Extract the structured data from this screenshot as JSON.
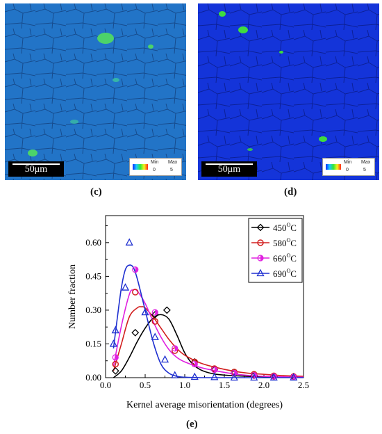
{
  "panels": {
    "c": {
      "label": "(c)",
      "scale_bar": "50μm",
      "color_key": {
        "min_label": "Min",
        "max_label": "Max",
        "min_value": "0",
        "max_value": "5"
      },
      "background_color": "#1f6bc4"
    },
    "d": {
      "label": "(d)",
      "scale_bar": "50μm",
      "color_key": {
        "min_label": "Min",
        "max_label": "Max",
        "min_value": "0",
        "max_value": "5"
      },
      "background_color": "#1028d6"
    },
    "e": {
      "label": "(e)"
    }
  },
  "chart_data": {
    "type": "line",
    "xlabel": "Kernel average misorientation (degrees)",
    "ylabel": "Number fraction",
    "xlim": [
      0.0,
      2.5
    ],
    "ylim": [
      0.0,
      0.72
    ],
    "xticks": [
      "0.0",
      "0.5",
      "1.0",
      "1.5",
      "2.0",
      "2.5"
    ],
    "yticks": [
      "0.00",
      "0.15",
      "0.30",
      "0.45",
      "0.60"
    ],
    "legend_position": "top-right",
    "series": [
      {
        "name": "450°C",
        "name_base": "450",
        "name_sup": "O",
        "name_unit": "C",
        "color": "#000000",
        "marker": "diamond",
        "points": {
          "x": [
            0.125,
            0.375,
            0.625,
            0.775,
            1.125,
            1.375,
            1.625,
            1.875,
            2.125,
            2.375
          ],
          "y": [
            0.03,
            0.2,
            0.28,
            0.3,
            0.07,
            0.035,
            0.02,
            0.01,
            0.005,
            0.005
          ]
        },
        "curve": {
          "x": [
            0.1,
            0.2,
            0.3,
            0.4,
            0.5,
            0.6,
            0.7,
            0.8,
            0.9,
            1.0,
            1.1,
            1.2,
            1.3,
            1.4,
            1.6,
            1.8,
            2.0,
            2.2,
            2.5
          ],
          "y": [
            0.0,
            0.03,
            0.09,
            0.16,
            0.22,
            0.265,
            0.28,
            0.26,
            0.19,
            0.11,
            0.06,
            0.035,
            0.022,
            0.015,
            0.009,
            0.006,
            0.004,
            0.003,
            0.002
          ]
        }
      },
      {
        "name": "580°C",
        "name_base": "580",
        "name_sup": "O",
        "name_unit": "C",
        "color": "#d21f1f",
        "marker": "circle",
        "points": {
          "x": [
            0.125,
            0.375,
            0.625,
            0.875,
            1.125,
            1.375,
            1.625,
            1.875,
            2.125,
            2.375
          ],
          "y": [
            0.06,
            0.38,
            0.25,
            0.12,
            0.07,
            0.04,
            0.025,
            0.015,
            0.008,
            0.005
          ]
        },
        "curve": {
          "x": [
            0.1,
            0.2,
            0.3,
            0.4,
            0.45,
            0.5,
            0.6,
            0.7,
            0.8,
            0.9,
            1.0,
            1.2,
            1.4,
            1.6,
            1.8,
            2.0,
            2.2,
            2.5
          ],
          "y": [
            0.03,
            0.15,
            0.27,
            0.31,
            0.315,
            0.31,
            0.27,
            0.22,
            0.17,
            0.13,
            0.1,
            0.065,
            0.045,
            0.03,
            0.02,
            0.015,
            0.01,
            0.006
          ]
        }
      },
      {
        "name": "660°C",
        "name_base": "660",
        "name_sup": "O",
        "name_unit": "C",
        "color": "#e020e0",
        "marker": "half-circle",
        "points": {
          "x": [
            0.125,
            0.375,
            0.625,
            0.875,
            1.125,
            1.375,
            1.625,
            1.875,
            2.125,
            2.375
          ],
          "y": [
            0.09,
            0.48,
            0.29,
            0.13,
            0.06,
            0.035,
            0.02,
            0.01,
            0.005,
            0.003
          ]
        },
        "curve": {
          "x": [
            0.1,
            0.2,
            0.3,
            0.35,
            0.4,
            0.5,
            0.6,
            0.7,
            0.8,
            0.9,
            1.0,
            1.2,
            1.4,
            1.6,
            1.8,
            2.0,
            2.2,
            2.5
          ],
          "y": [
            0.05,
            0.23,
            0.37,
            0.39,
            0.385,
            0.33,
            0.25,
            0.18,
            0.125,
            0.09,
            0.07,
            0.045,
            0.03,
            0.018,
            0.01,
            0.006,
            0.004,
            0.002
          ]
        }
      },
      {
        "name": "690°C",
        "name_base": "690",
        "name_sup": "O",
        "name_unit": "C",
        "color": "#1e2fd0",
        "marker": "triangle",
        "points": {
          "x": [
            0.1,
            0.125,
            0.25,
            0.3,
            0.5,
            0.625,
            0.75,
            0.875,
            1.125,
            1.375,
            1.625,
            1.875,
            2.125,
            2.375
          ],
          "y": [
            0.15,
            0.21,
            0.4,
            0.6,
            0.29,
            0.18,
            0.08,
            0.01,
            0.003,
            0.002,
            0.0,
            0.0,
            0.0,
            0.0
          ]
        },
        "curve": {
          "x": [
            0.1,
            0.15,
            0.2,
            0.25,
            0.3,
            0.35,
            0.4,
            0.5,
            0.6,
            0.7,
            0.8,
            0.9,
            1.0,
            1.2,
            1.5,
            2.0,
            2.5
          ],
          "y": [
            0.13,
            0.27,
            0.4,
            0.48,
            0.5,
            0.49,
            0.44,
            0.3,
            0.16,
            0.06,
            0.02,
            0.006,
            0.002,
            0.0,
            0.0,
            0.0,
            0.0
          ]
        }
      }
    ]
  }
}
